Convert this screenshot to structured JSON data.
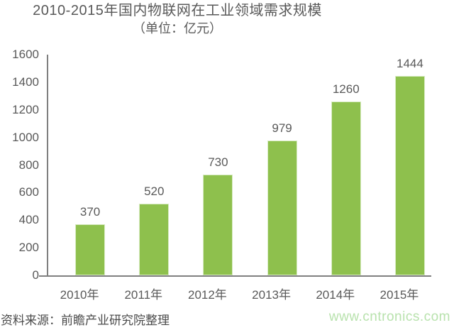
{
  "chart_data": {
    "type": "bar",
    "title": "2010-2015年国内物联网在工业领域需求规模",
    "subtitle": "（单位：亿元）",
    "categories": [
      "2010年",
      "2011年",
      "2012年",
      "2013年",
      "2014年",
      "2015年"
    ],
    "values": [
      370,
      520,
      730,
      979,
      1260,
      1444
    ],
    "xlabel": "",
    "ylabel": "",
    "ylim": [
      0,
      1600
    ],
    "yticks": [
      0,
      200,
      400,
      600,
      800,
      1000,
      1200,
      1400,
      1600
    ],
    "grid": false,
    "legend": "none",
    "bar_color": "#8ec04d",
    "axis_color": "#7f7f7f",
    "label_color": "#595959"
  },
  "footer": {
    "source": "资料来源：前瞻产业研究院整理",
    "watermark": "www.cntronics.com",
    "watermark_color": "#b8e2ad"
  }
}
